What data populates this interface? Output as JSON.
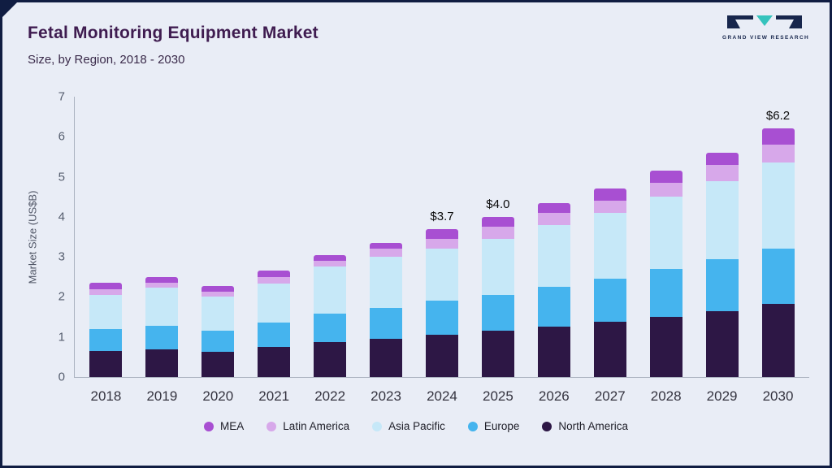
{
  "header": {
    "title": "Fetal Monitoring Equipment Market",
    "subtitle": "Size, by Region, 2018 - 2030",
    "brand": "GRAND VIEW RESEARCH"
  },
  "chart_data": {
    "type": "bar",
    "stacked": true,
    "title": "Fetal Monitoring Equipment Market Size, by Region, 2018 - 2030",
    "xlabel": "",
    "ylabel": "Market Size (US$B)",
    "ylim": [
      0,
      7
    ],
    "yticks": [
      0,
      1,
      2,
      3,
      4,
      5,
      6,
      7
    ],
    "grid": false,
    "legend_position": "bottom",
    "categories": [
      "2018",
      "2019",
      "2020",
      "2021",
      "2022",
      "2023",
      "2024",
      "2025",
      "2026",
      "2027",
      "2028",
      "2029",
      "2030"
    ],
    "series": [
      {
        "name": "North America",
        "color": "#2d1745",
        "values": [
          0.65,
          0.7,
          0.63,
          0.75,
          0.88,
          0.95,
          1.05,
          1.15,
          1.25,
          1.38,
          1.5,
          1.65,
          1.82
        ]
      },
      {
        "name": "Europe",
        "color": "#45b4ee",
        "values": [
          0.55,
          0.58,
          0.53,
          0.62,
          0.7,
          0.77,
          0.85,
          0.9,
          1.0,
          1.07,
          1.2,
          1.3,
          1.38
        ]
      },
      {
        "name": "Asia Pacific",
        "color": "#c6e8f8",
        "values": [
          0.85,
          0.95,
          0.84,
          0.97,
          1.17,
          1.28,
          1.3,
          1.4,
          1.55,
          1.65,
          1.8,
          1.95,
          2.15
        ]
      },
      {
        "name": "Latin America",
        "color": "#d7a8ea",
        "values": [
          0.15,
          0.13,
          0.13,
          0.16,
          0.15,
          0.2,
          0.25,
          0.3,
          0.3,
          0.3,
          0.35,
          0.4,
          0.45
        ]
      },
      {
        "name": "MEA",
        "color": "#a84fd2",
        "values": [
          0.15,
          0.14,
          0.15,
          0.15,
          0.15,
          0.15,
          0.25,
          0.25,
          0.25,
          0.3,
          0.3,
          0.3,
          0.4
        ]
      }
    ],
    "totals": [
      2.35,
      2.5,
      2.28,
      2.65,
      3.05,
      3.35,
      3.7,
      4.0,
      4.35,
      4.7,
      5.15,
      5.6,
      6.2
    ],
    "legend_order": [
      "MEA",
      "Latin America",
      "Asia Pacific",
      "Europe",
      "North America"
    ],
    "annotations": [
      {
        "category": "2024",
        "text": "$3.7"
      },
      {
        "category": "2025",
        "text": "$4.0"
      },
      {
        "category": "2030",
        "text": "$6.2"
      }
    ]
  },
  "colors": {
    "background": "#e9edf6",
    "frame_border": "#101d42",
    "title_text": "#3f1c50",
    "axis_text": "#555d6e",
    "logo_navy": "#17264c",
    "logo_teal": "#35c3bd"
  }
}
